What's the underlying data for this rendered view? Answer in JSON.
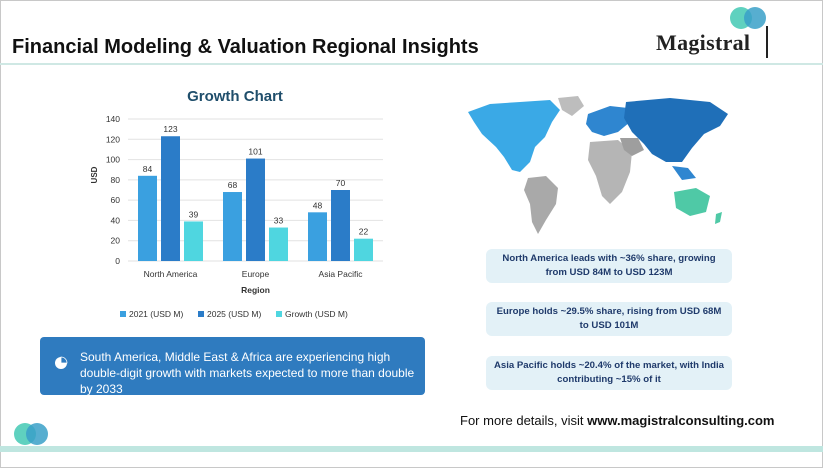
{
  "header": {
    "title": "Financial Modeling & Valuation Regional Insights"
  },
  "logo": {
    "name": "Magistral"
  },
  "chart_title": "Growth Chart",
  "chart_data": {
    "type": "bar",
    "title": "Growth Chart",
    "categories": [
      "North America",
      "Europe",
      "Asia Pacific"
    ],
    "series": [
      {
        "name": "2021 (USD M)",
        "values": [
          84,
          68,
          48
        ],
        "color": "#3aa0e0"
      },
      {
        "name": "2025 (USD M)",
        "values": [
          123,
          101,
          70
        ],
        "color": "#2b7cc8"
      },
      {
        "name": "Growth (USD M)",
        "values": [
          39,
          33,
          22
        ],
        "color": "#4fd6e0"
      }
    ],
    "xlabel": "Region",
    "ylabel": "USD",
    "ylim": [
      0,
      140
    ],
    "yticks": [
      0,
      20,
      40,
      60,
      80,
      100,
      120,
      140
    ],
    "grid": true,
    "legend": "bottom"
  },
  "callout": {
    "text": "South America, Middle East & Africa are experiencing high double-digit growth with markets expected to more than double by 2033",
    "icon": "pie-chart-icon"
  },
  "info_boxes": [
    "North America leads with ~36% share, growing from USD 84M to USD 123M",
    "Europe holds ~29.5% share, rising from USD 68M to USD 101M",
    "Asia Pacific holds ~20.4% of the market, with India contributing ~15% of it"
  ],
  "footer": {
    "prefix": "For more details, visit ",
    "url": "www.magistralconsulting.com"
  },
  "colors": {
    "accent_teal": "#4fc9b7",
    "accent_blue": "#2f7bbf",
    "box_bg": "#e3f1f7"
  }
}
